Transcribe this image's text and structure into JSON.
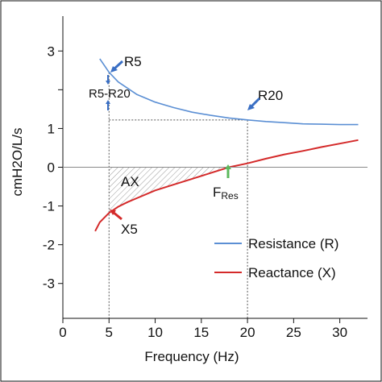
{
  "chart_data": {
    "type": "line",
    "xlabel": "Frequency (Hz)",
    "ylabel": "cmH2O/L/s",
    "xlim": [
      0,
      33
    ],
    "ylim": [
      -3.9,
      3.9
    ],
    "xticks": [
      "0",
      "5",
      "10",
      "15",
      "20",
      "25",
      "30"
    ],
    "yticks": [
      "3",
      "",
      "1",
      "0",
      "-1",
      "-2",
      "-3"
    ],
    "ytick_values": [
      3,
      2,
      1,
      0,
      -1,
      -2,
      -3
    ],
    "grid": false,
    "legend_position": "bottom-right",
    "series": [
      {
        "name": "Resistance (R)",
        "color": "#5b8fd4",
        "x": [
          4,
          5,
          6,
          8,
          10,
          12,
          14,
          16,
          18,
          20,
          22,
          24,
          26,
          28,
          30,
          32
        ],
        "y": [
          2.8,
          2.45,
          2.2,
          1.88,
          1.68,
          1.54,
          1.42,
          1.34,
          1.27,
          1.22,
          1.18,
          1.15,
          1.12,
          1.11,
          1.1,
          1.1
        ]
      },
      {
        "name": "Reactance (X)",
        "color": "#d42a2a",
        "x": [
          3.5,
          4,
          5,
          6,
          7,
          8,
          10,
          12,
          14,
          16,
          18,
          20,
          22,
          24,
          26,
          28,
          30,
          32
        ],
        "y": [
          -1.65,
          -1.42,
          -1.18,
          -1.02,
          -0.9,
          -0.8,
          -0.6,
          -0.45,
          -0.3,
          -0.15,
          0.0,
          0.1,
          0.22,
          0.33,
          0.42,
          0.52,
          0.61,
          0.7
        ]
      }
    ],
    "annotations": {
      "r5": "R5",
      "r5_r20": "R5-R20",
      "r20": "R20",
      "ax": "AX",
      "x5": "X5",
      "fres_main": "F",
      "fres_sub": "Res"
    },
    "reference": {
      "r5_x": 5,
      "r5_y": 2.45,
      "r20_x": 20,
      "r20_y": 1.22,
      "x5_y": -1.18,
      "fres_x": 18
    }
  }
}
